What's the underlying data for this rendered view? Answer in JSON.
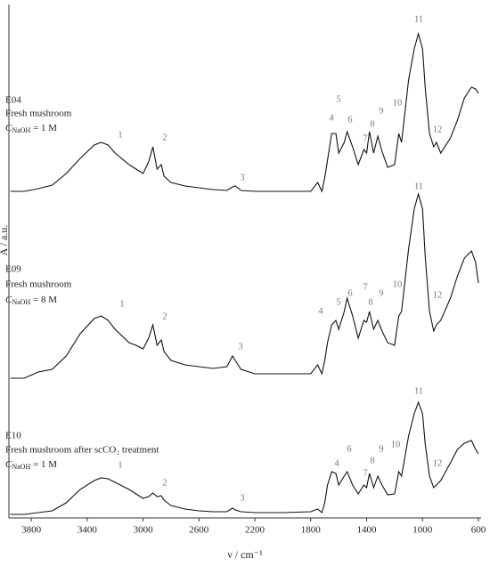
{
  "chart_data": {
    "type": "line",
    "xlabel": "ν / cm⁻¹",
    "ylabel": "A / a.u.",
    "xlim": [
      3960,
      600
    ],
    "ylim": [
      0,
      577
    ],
    "xticks": [
      3800,
      3400,
      3000,
      2600,
      2200,
      1800,
      1400,
      1000,
      600
    ],
    "x": [
      3950,
      3850,
      3750,
      3650,
      3550,
      3450,
      3350,
      3300,
      3250,
      3200,
      3100,
      3050,
      3000,
      2960,
      2930,
      2900,
      2870,
      2850,
      2800,
      2700,
      2600,
      2500,
      2400,
      2360,
      2340,
      2300,
      2200,
      2000,
      1800,
      1750,
      1720,
      1700,
      1680,
      1650,
      1620,
      1600,
      1560,
      1540,
      1500,
      1460,
      1420,
      1400,
      1380,
      1350,
      1320,
      1290,
      1250,
      1200,
      1170,
      1150,
      1100,
      1060,
      1030,
      1000,
      980,
      950,
      920,
      900,
      870,
      800,
      750,
      700,
      650,
      620,
      600
    ],
    "series": [
      {
        "name": "E04",
        "color": "#111111",
        "description": "Fresh mushroom",
        "condition": {
          "symbol": "C",
          "subscript": "NaOH",
          "text": " = 1 M"
        },
        "peak_labels": [
          "1",
          "2",
          "3",
          "4",
          "5",
          "6",
          "7",
          "8",
          "9",
          "10",
          "11",
          "12"
        ],
        "values": [
          367,
          367,
          370,
          374,
          387,
          404,
          419,
          422,
          419,
          410,
          397,
          392,
          387,
          400,
          417,
          392,
          397,
          384,
          377,
          373,
          371,
          369,
          368,
          372,
          373,
          368,
          367,
          367,
          367,
          377,
          367,
          382,
          402,
          432,
          432,
          410,
          422,
          434,
          417,
          397,
          414,
          410,
          434,
          410,
          429,
          412,
          394,
          397,
          432,
          422,
          492,
          527,
          544,
          527,
          482,
          432,
          417,
          422,
          410,
          427,
          447,
          472,
          484,
          482,
          477
        ]
      },
      {
        "name": "E09",
        "color": "#111111",
        "description": "Fresh mushroom",
        "condition": {
          "symbol": "C",
          "subscript": "NaOH",
          "text": " = 8 M"
        },
        "peak_labels": [
          "1",
          "2",
          "3",
          "4",
          "5",
          "6",
          "7",
          "8",
          "9",
          "10",
          "11",
          "12"
        ],
        "values": [
          157,
          157,
          164,
          167,
          182,
          207,
          224,
          227,
          222,
          212,
          197,
          194,
          190,
          202,
          217,
          194,
          200,
          187,
          177,
          172,
          170,
          168,
          170,
          182,
          177,
          167,
          162,
          162,
          162,
          172,
          162,
          177,
          197,
          217,
          222,
          212,
          232,
          247,
          227,
          202,
          222,
          220,
          232,
          212,
          222,
          210,
          197,
          194,
          227,
          232,
          302,
          347,
          364,
          347,
          292,
          232,
          210,
          217,
          222,
          247,
          272,
          292,
          300,
          287,
          264
        ]
      },
      {
        "name": "E10",
        "color": "#111111",
        "description": "Fresh mushroom after scCO₂ treatment",
        "condition": {
          "symbol": "C",
          "subscript": "NaOH",
          "text": " = 1 M"
        },
        "peak_labels": [
          "1",
          "2",
          "3",
          "4",
          "6",
          "7",
          "8",
          "9",
          "10",
          "11",
          "12"
        ],
        "values": [
          4,
          4,
          6,
          8,
          17,
          32,
          42,
          45,
          44,
          40,
          32,
          27,
          22,
          24,
          28,
          24,
          25,
          20,
          14,
          10,
          8,
          7,
          7,
          11,
          9,
          7,
          6,
          6,
          7,
          10,
          6,
          17,
          37,
          52,
          50,
          37,
          47,
          52,
          37,
          27,
          37,
          34,
          50,
          34,
          47,
          37,
          26,
          27,
          52,
          47,
          92,
          117,
          130,
          117,
          82,
          47,
          34,
          37,
          42,
          62,
          77,
          84,
          87,
          77,
          72
        ]
      }
    ]
  }
}
